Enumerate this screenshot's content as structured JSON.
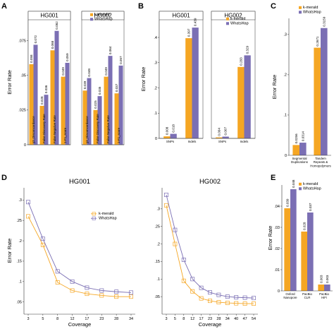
{
  "colors": {
    "kmerald": "#F5A623",
    "whatshap": "#7B6FB4"
  },
  "panel_letters": [
    "A",
    "B",
    "C",
    "D",
    "E"
  ],
  "legend": {
    "kmerald": "k-merald",
    "whatshap": "WhatsHap"
  },
  "chart_data": [
    {
      "panel": "A",
      "type": "bar",
      "ylabel": "Error Rate",
      "ylim": [
        0,
        0.09
      ],
      "yticks": [
        0,
        0.025,
        0.05,
        0.075
      ],
      "series": [
        {
          "name": "k-merald"
        },
        {
          "name": "WhatsHap"
        }
      ],
      "facets": [
        {
          "title": "HG001",
          "categories": [
            "χ2_Disconcordance",
            "False Discovery Rate",
            "False Negative Rate",
            "1-F1_score"
          ],
          "series_values": [
            [
              0.058,
              0.028,
              0.068,
              0.049
            ],
            [
              0.072,
              0.036,
              0.082,
              0.059
            ]
          ],
          "value_labels": [
            [
              "0.058",
              "0.028",
              "0.068",
              "0.049"
            ],
            [
              "0.072",
              "0.036",
              "0.082",
              "0.059"
            ]
          ]
        },
        {
          "title": "HG002",
          "categories": [
            "χ2_Disconcordance",
            "False Discovery Rate",
            "False Negative Rate",
            "1-F1_score"
          ],
          "series_values": [
            [
              0.039,
              0.025,
              0.049,
              0.037
            ],
            [
              0.048,
              0.035,
              0.064,
              0.057
            ]
          ],
          "value_labels": [
            [
              "0.039",
              "0.025",
              "0.049",
              "0.037"
            ],
            [
              "0.048",
              "0.035",
              "0.064",
              "0.057"
            ]
          ]
        }
      ]
    },
    {
      "panel": "B",
      "type": "bar",
      "ylabel": "Error Rate",
      "ylim": [
        0,
        0.47
      ],
      "yticks": [
        0,
        0.1,
        0.2,
        0.3,
        0.4
      ],
      "series": [
        {
          "name": "k-merald"
        },
        {
          "name": "WhatsHap"
        }
      ],
      "facets": [
        {
          "title": "HG001",
          "categories": [
            "SNPs",
            "Indels"
          ],
          "series_values": [
            [
              0.008,
              0.397
            ],
            [
              0.018,
              0.439
            ]
          ],
          "value_labels": [
            [
              "0.008",
              "0.397"
            ],
            [
              "0.018",
              "0.439"
            ]
          ]
        },
        {
          "title": "HG002",
          "categories": [
            "SNPs",
            "Indels"
          ],
          "series_values": [
            [
              0.004,
              0.283
            ],
            [
              0.007,
              0.329
            ]
          ],
          "value_labels": [
            [
              "0.004",
              "0.283"
            ],
            [
              "0.007",
              "0.329"
            ]
          ]
        }
      ]
    },
    {
      "panel": "D",
      "type": "bar",
      "ylabel": "Error Rate",
      "ylim": [
        0,
        0.34
      ],
      "yticks": [
        0,
        0.1,
        0.2,
        0.3
      ],
      "series": [
        {
          "name": "k-merald"
        },
        {
          "name": "WhatsHap"
        }
      ],
      "facets": [
        {
          "title": "",
          "categories": [
            "Segmental Duplications",
            "Tandem Repeats & Homopolymers"
          ],
          "series_values": [
            [
              0.0256,
              0.2671
            ],
            [
              0.0314,
              0.3159
            ]
          ],
          "value_labels": [
            [
              "0.0256",
              "0.2671"
            ],
            [
              "0.0314",
              "0.3159"
            ]
          ]
        }
      ]
    },
    {
      "panel": "C",
      "type": "line",
      "xlabel": "Coverage",
      "ylabel": "Error Rate",
      "series": [
        {
          "name": "k-merald"
        },
        {
          "name": "WhatsHap"
        }
      ],
      "facets": [
        {
          "title": "HG001",
          "x": [
            3,
            5,
            8,
            12,
            17,
            23,
            28,
            34
          ],
          "ylim": [
            0.02,
            0.33
          ],
          "yticks": [
            0.05,
            0.1,
            0.15,
            0.2,
            0.25,
            0.3
          ],
          "series_values": [
            [
              0.26,
              0.19,
              0.098,
              0.078,
              0.07,
              0.066,
              0.063,
              0.063
            ],
            [
              0.295,
              0.205,
              0.125,
              0.1,
              0.085,
              0.078,
              0.075,
              0.073
            ]
          ]
        },
        {
          "title": "HG002",
          "x": [
            3,
            5,
            8,
            12,
            17,
            23,
            28,
            34,
            40,
            47,
            54
          ],
          "ylim": [
            0.0,
            0.36
          ],
          "yticks": [
            0.05,
            0.1,
            0.15,
            0.2,
            0.25,
            0.3
          ],
          "series_values": [
            [
              0.31,
              0.2,
              0.095,
              0.065,
              0.045,
              0.038,
              0.034,
              0.032,
              0.031,
              0.03,
              0.03
            ],
            [
              0.34,
              0.24,
              0.155,
              0.1,
              0.075,
              0.062,
              0.055,
              0.05,
              0.048,
              0.047,
              0.046
            ]
          ]
        }
      ]
    },
    {
      "panel": "E",
      "type": "bar",
      "ylabel": "Error Rate",
      "ylim": [
        0,
        0.05
      ],
      "yticks": [
        0,
        0.01,
        0.02,
        0.03,
        0.04
      ],
      "series": [
        {
          "name": "k-merald"
        },
        {
          "name": "WhatsHap"
        }
      ],
      "facets": [
        {
          "title": "",
          "categories": [
            "Oxford Nanopore",
            "PacBio CLR",
            "PacBio HiFi"
          ],
          "series_values": [
            [
              0.039,
              0.028,
              0.003
            ],
            [
              0.048,
              0.037,
              0.003
            ]
          ],
          "value_labels": [
            [
              "0.039",
              "0.028",
              "0.003"
            ],
            [
              "0.048",
              "0.037",
              "0.003"
            ]
          ]
        }
      ]
    }
  ]
}
